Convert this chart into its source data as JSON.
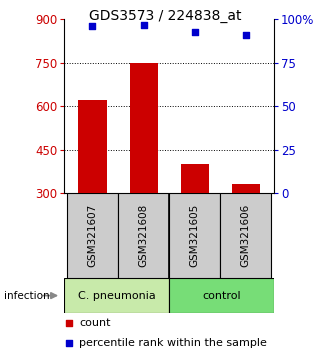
{
  "title": "GDS3573 / 224838_at",
  "samples": [
    "GSM321607",
    "GSM321608",
    "GSM321605",
    "GSM321606"
  ],
  "bar_values": [
    620,
    750,
    400,
    330
  ],
  "percentile_values": [
    96,
    97,
    93,
    91
  ],
  "bar_color": "#cc0000",
  "dot_color": "#0000cc",
  "ylim_left": [
    300,
    900
  ],
  "ylim_right": [
    0,
    100
  ],
  "yticks_left": [
    300,
    450,
    600,
    750,
    900
  ],
  "yticks_right": [
    0,
    25,
    50,
    75,
    100
  ],
  "ytick_labels_right": [
    "0",
    "25",
    "50",
    "75",
    "100%"
  ],
  "groups": [
    {
      "label": "C. pneumonia",
      "samples": [
        "GSM321607",
        "GSM321608"
      ],
      "color": "#aaddaa"
    },
    {
      "label": "control",
      "samples": [
        "GSM321605",
        "GSM321606"
      ],
      "color": "#66cc66"
    }
  ],
  "infection_label": "infection",
  "legend_count_label": "count",
  "legend_percentile_label": "percentile rank within the sample",
  "bar_width": 0.55,
  "bar_bottom": 300,
  "sample_box_color": "#cccccc",
  "left_ytick_color": "#cc0000",
  "right_ytick_color": "#0000cc",
  "group0_color": "#c8eaaa",
  "group1_color": "#77dd77"
}
